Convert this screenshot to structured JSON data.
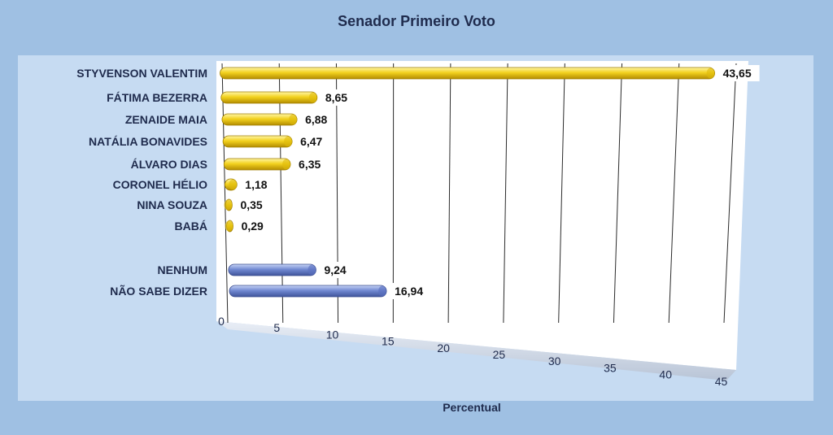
{
  "chart_data": {
    "type": "bar",
    "orientation": "horizontal",
    "title": "Senador Primeiro Voto",
    "xlabel": "Percentual",
    "ylabel": "",
    "xlim": [
      0,
      45
    ],
    "ticks": [
      "0",
      "5",
      "10",
      "15",
      "20",
      "25",
      "30",
      "35",
      "40",
      "45"
    ],
    "grid": true,
    "legend": "none",
    "categories": [
      "STYVENSON VALENTIM",
      "FÁTIMA BEZERRA",
      "ZENAIDE MAIA",
      "NATÁLIA BONAVIDES",
      "ÁLVARO DIAS",
      "CORONEL HÉLIO",
      "NINA SOUZA",
      "BABÁ",
      "NENHUM",
      "NÃO SABE DIZER"
    ],
    "values": [
      43.65,
      8.65,
      6.88,
      6.47,
      6.35,
      1.18,
      0.35,
      0.29,
      9.24,
      16.94
    ],
    "value_labels": [
      "43,65",
      "8,65",
      "6,88",
      "6,47",
      "6,35",
      "1,18",
      "0,35",
      "0,29",
      "9,24",
      "16,94"
    ],
    "bar_colors": [
      "#f3d21e",
      "#f3d21e",
      "#f3d21e",
      "#f3d21e",
      "#f3d21e",
      "#f3d21e",
      "#f3d21e",
      "#f3d21e",
      "#6f86cf",
      "#6f86cf"
    ]
  }
}
